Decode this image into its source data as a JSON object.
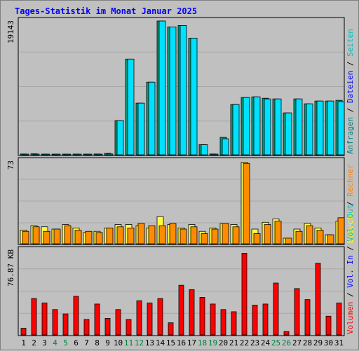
{
  "chart_data": {
    "title": "Tages-Statistik im Monat Januar 2025",
    "type": "bar",
    "days": [
      "1",
      "2",
      "3",
      "4",
      "5",
      "6",
      "7",
      "8",
      "9",
      "10",
      "11",
      "12",
      "13",
      "14",
      "15",
      "16",
      "17",
      "18",
      "19",
      "20",
      "21",
      "22",
      "23",
      "24",
      "25",
      "26",
      "27",
      "28",
      "29",
      "30",
      "31"
    ],
    "weekend_days": [
      "4",
      "5",
      "11",
      "12",
      "18",
      "19",
      "25",
      "26"
    ],
    "colors": {
      "title": "#0000ff",
      "weekday_label": "#000000",
      "weekend_label": "#008040",
      "anfragen": "#008080",
      "dateien": "#0000ff",
      "seiten": "#00c0c0",
      "besuche": "#ffff00",
      "rechner": "#ff8000",
      "volumen": "#ff0000",
      "volumen_in": "#0000ff",
      "volumen_out": "#00c0c0",
      "bar_teal": "#00a080",
      "bar_cyan": "#00e0ff",
      "bar_yellow": "#ffff40",
      "bar_orange": "#ff8c00",
      "bar_red": "#ff0000",
      "panel_bg": "#c0c0c0"
    },
    "panels": [
      {
        "max_label": "19143",
        "ylim": [
          0,
          19143
        ],
        "series_label_parts": [
          {
            "text": "Anfragen",
            "color_key": "anfragen"
          },
          {
            "text": " / ",
            "color_key": "weekday_label"
          },
          {
            "text": "Dateien",
            "color_key": "dateien"
          },
          {
            "text": " / ",
            "color_key": "weekday_label"
          },
          {
            "text": "Seiten",
            "color_key": "seiten"
          }
        ],
        "series": [
          {
            "name": "Anfragen",
            "color_key": "bar_teal",
            "values": [
              120,
              150,
              100,
              100,
              100,
              110,
              100,
              120,
              220,
              4900,
              13700,
              7400,
              10400,
              19143,
              18300,
              18500,
              16700,
              1450,
              120,
              2500,
              7200,
              8200,
              8300,
              8100,
              8000,
              6000,
              8000,
              7300,
              7700,
              7700,
              7800
            ]
          },
          {
            "name": "Seiten",
            "color_key": "bar_cyan",
            "values": [
              60,
              70,
              50,
              50,
              50,
              55,
              50,
              60,
              120,
              4900,
              13700,
              7400,
              10400,
              19143,
              18300,
              18500,
              16700,
              1450,
              60,
              2300,
              7200,
              8200,
              8300,
              8000,
              8000,
              6000,
              8000,
              7300,
              7700,
              7700,
              7600
            ]
          }
        ]
      },
      {
        "max_label": "73",
        "ylim": [
          0,
          73
        ],
        "series_label_parts": [
          {
            "text": "Besuche",
            "color_key": "besuche"
          },
          {
            "text": " / ",
            "color_key": "weekday_label"
          },
          {
            "text": "Rechner",
            "color_key": "rechner"
          }
        ],
        "series": [
          {
            "name": "Besuche",
            "color_key": "bar_yellow",
            "values": [
              12,
              16,
              15,
              13,
              17,
              14,
              10,
              11,
              14,
              17,
              17,
              16,
              14,
              24,
              17,
              14,
              17,
              11,
              14,
              18,
              17,
              72,
              13,
              19,
              22,
              5,
              13,
              18,
              14,
              8,
              20
            ]
          },
          {
            "name": "Rechner",
            "color_key": "bar_orange",
            "values": [
              11,
              15,
              11,
              13,
              16,
              12,
              11,
              10,
              14,
              15,
              14,
              18,
              16,
              16,
              18,
              13,
              15,
              9,
              13,
              18,
              15,
              71,
              9,
              17,
              20,
              5,
              11,
              16,
              12,
              8,
              23
            ]
          }
        ]
      },
      {
        "max_label": "76.87 KB",
        "ylim": [
          0,
          76.87
        ],
        "series_label_parts": [
          {
            "text": "Volumen",
            "color_key": "volumen"
          },
          {
            "text": " / ",
            "color_key": "weekday_label"
          },
          {
            "text": "Vol. In",
            "color_key": "volumen_in"
          },
          {
            "text": " / ",
            "color_key": "weekday_label"
          },
          {
            "text": "Vol. Out",
            "color_key": "volumen_out"
          }
        ],
        "series": [
          {
            "name": "Volumen",
            "color_key": "bar_red",
            "values": [
              6,
              33,
              29,
              23,
              19,
              35,
              14,
              28,
              15,
              23,
              14,
              31,
              29,
              33,
              11,
              45,
              41,
              34,
              28,
              23,
              21,
              74,
              27,
              28,
              47,
              3,
              42,
              32,
              65,
              17,
              29
            ]
          }
        ]
      }
    ]
  }
}
